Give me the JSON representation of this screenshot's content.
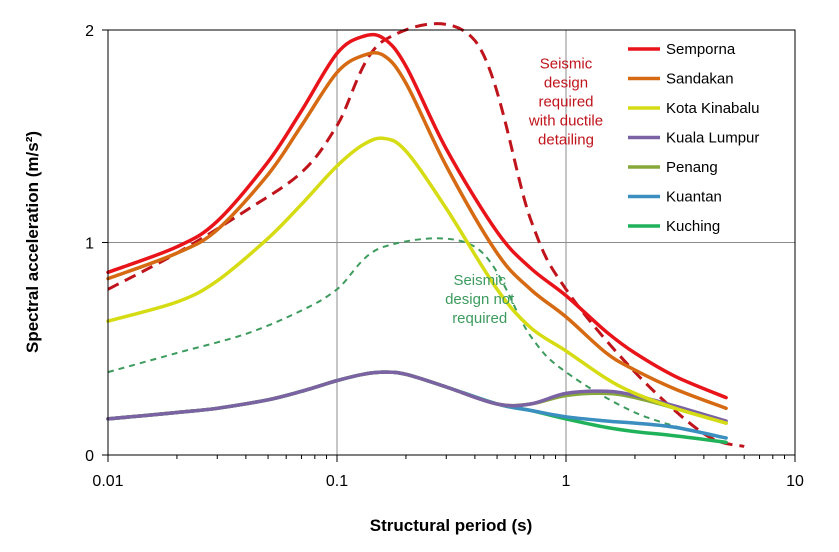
{
  "chart_data": {
    "type": "line",
    "xlabel": "Structural period (s)",
    "ylabel": "Spectral acceleration (m/s²)",
    "xscale": "log",
    "xlim": [
      0.01,
      10
    ],
    "ylim": [
      0,
      2
    ],
    "xticks": [
      {
        "value": 0.01,
        "label": "0.01"
      },
      {
        "value": 0.1,
        "label": "0.1"
      },
      {
        "value": 1,
        "label": "1"
      },
      {
        "value": 10,
        "label": "10"
      }
    ],
    "yticks": [
      {
        "value": 0,
        "label": "0"
      },
      {
        "value": 1,
        "label": "1"
      },
      {
        "value": 2,
        "label": "2"
      }
    ],
    "grid": "major",
    "legend_position": "top-right",
    "series": [
      {
        "name": "Semporna",
        "color": "#e8141a",
        "x": [
          0.01,
          0.02,
          0.03,
          0.05,
          0.07,
          0.1,
          0.13,
          0.16,
          0.2,
          0.3,
          0.5,
          0.7,
          1.0,
          1.5,
          2.0,
          3.0,
          5.0
        ],
        "y": [
          0.86,
          0.98,
          1.1,
          1.38,
          1.62,
          1.89,
          1.97,
          1.96,
          1.83,
          1.44,
          1.05,
          0.88,
          0.75,
          0.58,
          0.48,
          0.37,
          0.27
        ]
      },
      {
        "name": "Sandakan",
        "color": "#d66a12",
        "x": [
          0.01,
          0.02,
          0.03,
          0.05,
          0.07,
          0.1,
          0.13,
          0.16,
          0.2,
          0.3,
          0.5,
          0.7,
          1.0,
          1.5,
          2.0,
          3.0,
          5.0
        ],
        "y": [
          0.83,
          0.95,
          1.06,
          1.32,
          1.55,
          1.8,
          1.88,
          1.88,
          1.75,
          1.36,
          0.95,
          0.78,
          0.65,
          0.48,
          0.4,
          0.31,
          0.22
        ]
      },
      {
        "name": "Kota Kinabalu",
        "color": "#d6dc14",
        "x": [
          0.01,
          0.02,
          0.03,
          0.05,
          0.07,
          0.1,
          0.13,
          0.16,
          0.2,
          0.3,
          0.5,
          0.7,
          1.0,
          1.5,
          2.0,
          3.0,
          5.0
        ],
        "y": [
          0.63,
          0.72,
          0.82,
          1.02,
          1.18,
          1.36,
          1.46,
          1.49,
          1.43,
          1.16,
          0.78,
          0.6,
          0.49,
          0.36,
          0.29,
          0.22,
          0.15
        ]
      },
      {
        "name": "Kuala Lumpur",
        "color": "#7b62a3",
        "x": [
          0.01,
          0.02,
          0.03,
          0.05,
          0.07,
          0.1,
          0.13,
          0.16,
          0.2,
          0.3,
          0.5,
          0.7,
          1.0,
          1.5,
          2.0,
          3.0,
          5.0
        ],
        "y": [
          0.17,
          0.2,
          0.22,
          0.26,
          0.3,
          0.35,
          0.38,
          0.39,
          0.38,
          0.32,
          0.24,
          0.24,
          0.29,
          0.3,
          0.28,
          0.23,
          0.16
        ]
      },
      {
        "name": "Penang",
        "color": "#86a83a",
        "x": [
          0.01,
          0.02,
          0.03,
          0.05,
          0.07,
          0.1,
          0.13,
          0.16,
          0.2,
          0.3,
          0.5,
          0.7,
          1.0,
          1.5,
          2.0,
          3.0,
          5.0
        ],
        "y": [
          0.17,
          0.2,
          0.22,
          0.26,
          0.3,
          0.35,
          0.38,
          0.39,
          0.38,
          0.32,
          0.24,
          0.24,
          0.28,
          0.29,
          0.27,
          0.22,
          0.15
        ]
      },
      {
        "name": "Kuantan",
        "color": "#3a8fc0",
        "x": [
          0.01,
          0.02,
          0.03,
          0.05,
          0.07,
          0.1,
          0.13,
          0.16,
          0.2,
          0.3,
          0.5,
          0.7,
          1.0,
          1.5,
          2.0,
          3.0,
          5.0
        ],
        "y": [
          0.17,
          0.2,
          0.22,
          0.26,
          0.3,
          0.35,
          0.38,
          0.39,
          0.38,
          0.32,
          0.24,
          0.21,
          0.18,
          0.16,
          0.15,
          0.13,
          0.08
        ]
      },
      {
        "name": "Kuching",
        "color": "#1fb25a",
        "x": [
          0.01,
          0.02,
          0.03,
          0.05,
          0.07,
          0.1,
          0.13,
          0.16,
          0.2,
          0.3,
          0.5,
          0.7,
          1.0,
          1.5,
          2.0,
          3.0,
          5.0
        ],
        "y": [
          0.17,
          0.2,
          0.22,
          0.26,
          0.3,
          0.35,
          0.38,
          0.39,
          0.38,
          0.32,
          0.24,
          0.21,
          0.17,
          0.13,
          0.11,
          0.09,
          0.06
        ]
      }
    ],
    "reference_lines": [
      {
        "color": "#c0141c",
        "style": "dashed-thick",
        "x": [
          0.01,
          0.02,
          0.04,
          0.07,
          0.1,
          0.16,
          0.4,
          0.7,
          1.0,
          2.0,
          4.0,
          6.0
        ],
        "y": [
          0.78,
          0.95,
          1.15,
          1.33,
          1.55,
          1.95,
          1.95,
          1.11,
          0.78,
          0.39,
          0.1,
          0.04
        ]
      },
      {
        "color": "#3e9b5e",
        "style": "dashed-thin",
        "x": [
          0.01,
          0.02,
          0.04,
          0.07,
          0.1,
          0.16,
          0.4,
          0.7,
          1.0,
          2.0,
          4.0,
          5.0
        ],
        "y": [
          0.39,
          0.48,
          0.57,
          0.68,
          0.78,
          0.98,
          0.98,
          0.56,
          0.39,
          0.2,
          0.1,
          0.08
        ]
      }
    ],
    "annotations": [
      {
        "lines": [
          "Seismic",
          "design",
          "required",
          "with ductile",
          "detailing"
        ],
        "color": "#c0141c",
        "x": 1.0,
        "y": 1.82
      },
      {
        "lines": [
          "Seismic",
          "design not",
          "required"
        ],
        "color": "#3e9b5e",
        "x": 0.42,
        "y": 0.8
      }
    ]
  }
}
